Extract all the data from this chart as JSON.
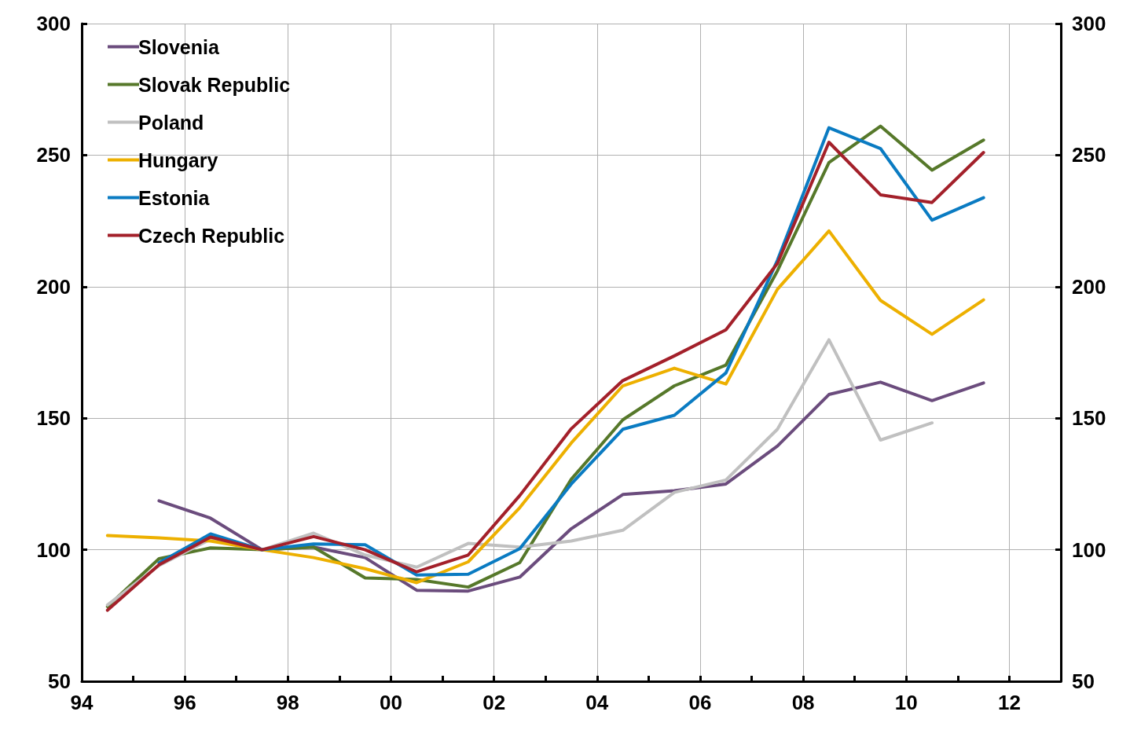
{
  "chart_data": {
    "type": "line",
    "x": [
      1994.5,
      1995.5,
      1996.5,
      1997.5,
      1998.5,
      1999.5,
      2000.5,
      2001.5,
      2002.5,
      2003.5,
      2004.5,
      2005.5,
      2006.5,
      2007.5,
      2008.5,
      2009.5,
      2010.5,
      2011.5
    ],
    "xlim": [
      1994,
      2013
    ],
    "xticks": [
      {
        "value": 1994,
        "label": "94"
      },
      {
        "value": 1995,
        "label": null
      },
      {
        "value": 1996,
        "label": "96"
      },
      {
        "value": 1997,
        "label": null
      },
      {
        "value": 1998,
        "label": "98"
      },
      {
        "value": 1999,
        "label": null
      },
      {
        "value": 2000,
        "label": "00"
      },
      {
        "value": 2001,
        "label": null
      },
      {
        "value": 2002,
        "label": "02"
      },
      {
        "value": 2003,
        "label": null
      },
      {
        "value": 2004,
        "label": "04"
      },
      {
        "value": 2005,
        "label": null
      },
      {
        "value": 2006,
        "label": "06"
      },
      {
        "value": 2007,
        "label": null
      },
      {
        "value": 2008,
        "label": "08"
      },
      {
        "value": 2009,
        "label": null
      },
      {
        "value": 2010,
        "label": "10"
      },
      {
        "value": 2011,
        "label": null
      },
      {
        "value": 2012,
        "label": "12"
      }
    ],
    "ylim": [
      50,
      300
    ],
    "yticks": [
      50,
      100,
      150,
      200,
      250,
      300
    ],
    "y2lim": [
      50,
      300
    ],
    "y2ticks": [
      50,
      100,
      150,
      200,
      250,
      300
    ],
    "grid": true,
    "legend": "top left",
    "marker": "none",
    "line_style": "solid",
    "series": [
      {
        "name": "Slovenia",
        "color": "#6b4c7d",
        "values": [
          null,
          118.6,
          112,
          100,
          101,
          97,
          84.6,
          84.3,
          89.6,
          108,
          121,
          122.4,
          125,
          139.4,
          159,
          163.7,
          156.7,
          163.4
        ]
      },
      {
        "name": "Slovak Republic",
        "color": "#56782a",
        "values": [
          78.4,
          96.6,
          100.7,
          100,
          101,
          89.3,
          88.7,
          85.8,
          95.1,
          126.8,
          149.4,
          162.3,
          170.2,
          206,
          247.2,
          261,
          244.3,
          255.7
        ]
      },
      {
        "name": "Poland",
        "color": "#c0c0c0",
        "values": [
          79,
          94,
          104,
          100,
          106.3,
          98,
          93.4,
          102.4,
          101,
          103.3,
          107.4,
          121.8,
          126.5,
          145.8,
          179.8,
          141.7,
          148.2,
          null
        ]
      },
      {
        "name": "Hungary",
        "color": "#edb000",
        "values": [
          105.4,
          104.5,
          103.3,
          100,
          97,
          92.8,
          87.5,
          95.4,
          116,
          140.6,
          162.3,
          169,
          163,
          199,
          221.2,
          194.8,
          181.9,
          195
        ]
      },
      {
        "name": "Estonia",
        "color": "#0a7bc2",
        "values": [
          null,
          95,
          106,
          100,
          102.2,
          101.9,
          90.4,
          90.7,
          100.4,
          125,
          145.8,
          151.1,
          167.2,
          210,
          260.4,
          252.5,
          225.3,
          233.8
        ]
      },
      {
        "name": "Czech Republic",
        "color": "#a3202a",
        "values": [
          77,
          94.3,
          104.8,
          100,
          105,
          100,
          91.6,
          98,
          120.6,
          146,
          164.3,
          173.7,
          183.6,
          208.8,
          254.9,
          234.9,
          232,
          251
        ]
      }
    ]
  }
}
